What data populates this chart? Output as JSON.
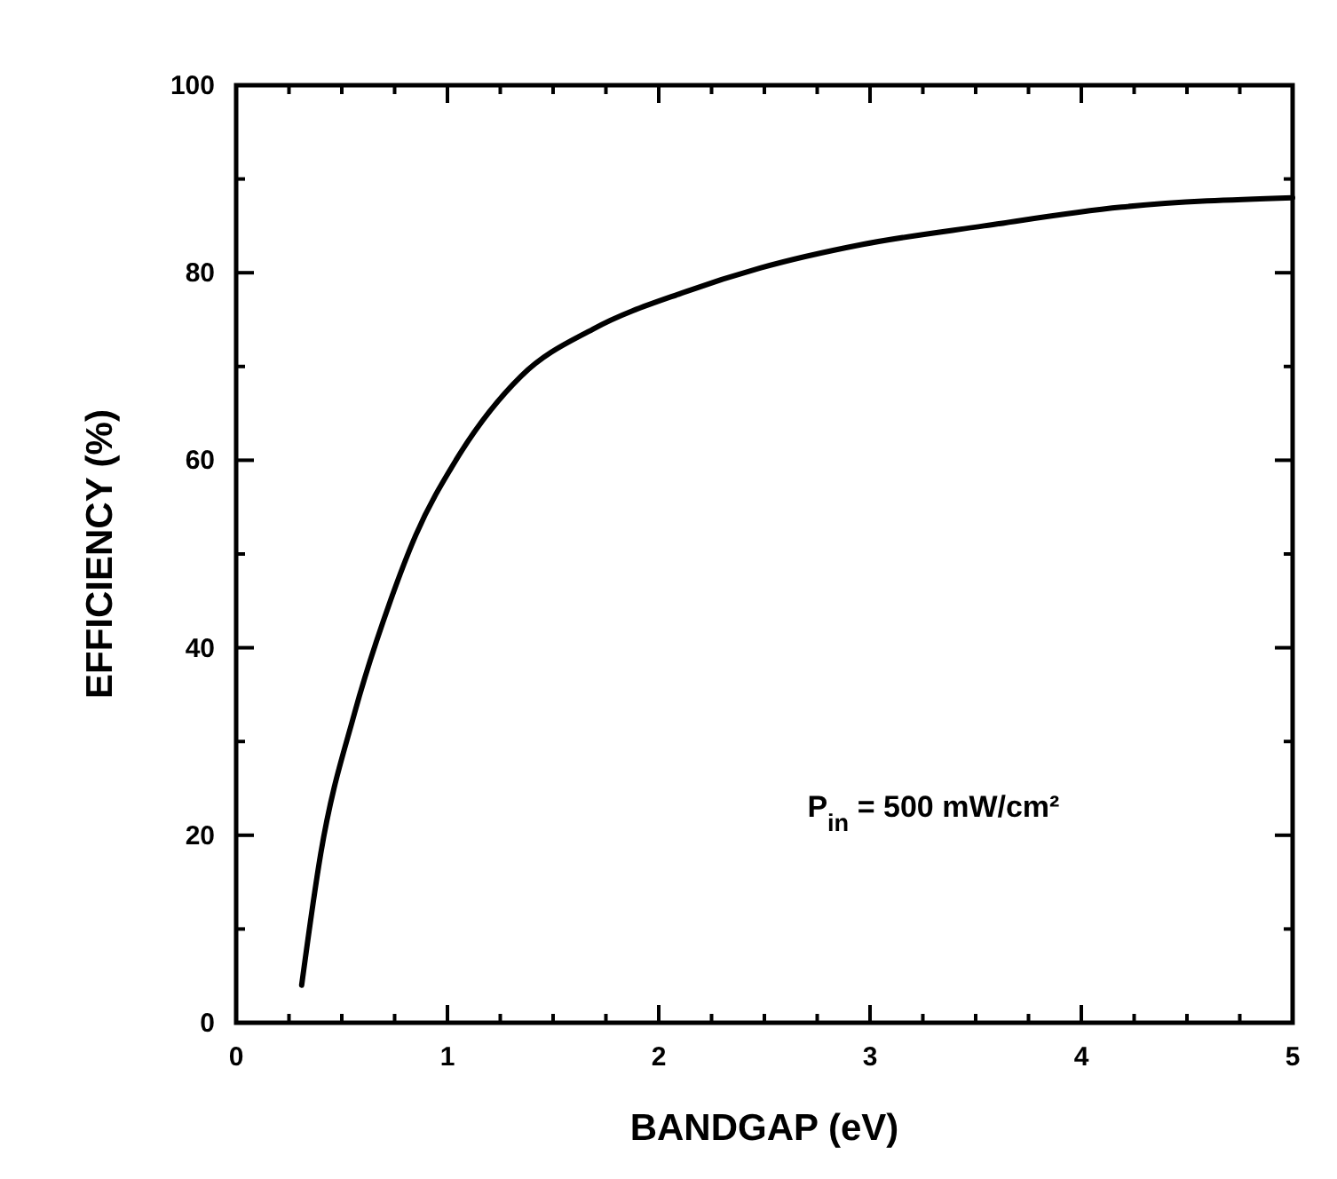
{
  "chart_data": {
    "type": "line",
    "xlabel": "BANDGAP  (eV)",
    "ylabel": "EFFICIENCY  (%)",
    "xlim": [
      0,
      5
    ],
    "xticks": [
      0,
      1,
      2,
      3,
      4,
      5
    ],
    "ylim": [
      0,
      100
    ],
    "yticks": [
      0,
      20,
      40,
      60,
      80,
      100
    ],
    "grid": false,
    "series": [
      {
        "color": "#000000",
        "x": [
          0.31,
          0.4,
          0.56,
          0.73,
          0.85,
          1.04,
          1.35,
          1.69,
          2.13,
          2.48,
          2.96,
          3.54,
          4.19,
          5.0
        ],
        "values": [
          4,
          18,
          33,
          45,
          52,
          60,
          69,
          74,
          78,
          80.5,
          83,
          85,
          87,
          88
        ]
      }
    ],
    "annotations": [
      "P$_{in}$  =  500  mW/cm²"
    ]
  }
}
